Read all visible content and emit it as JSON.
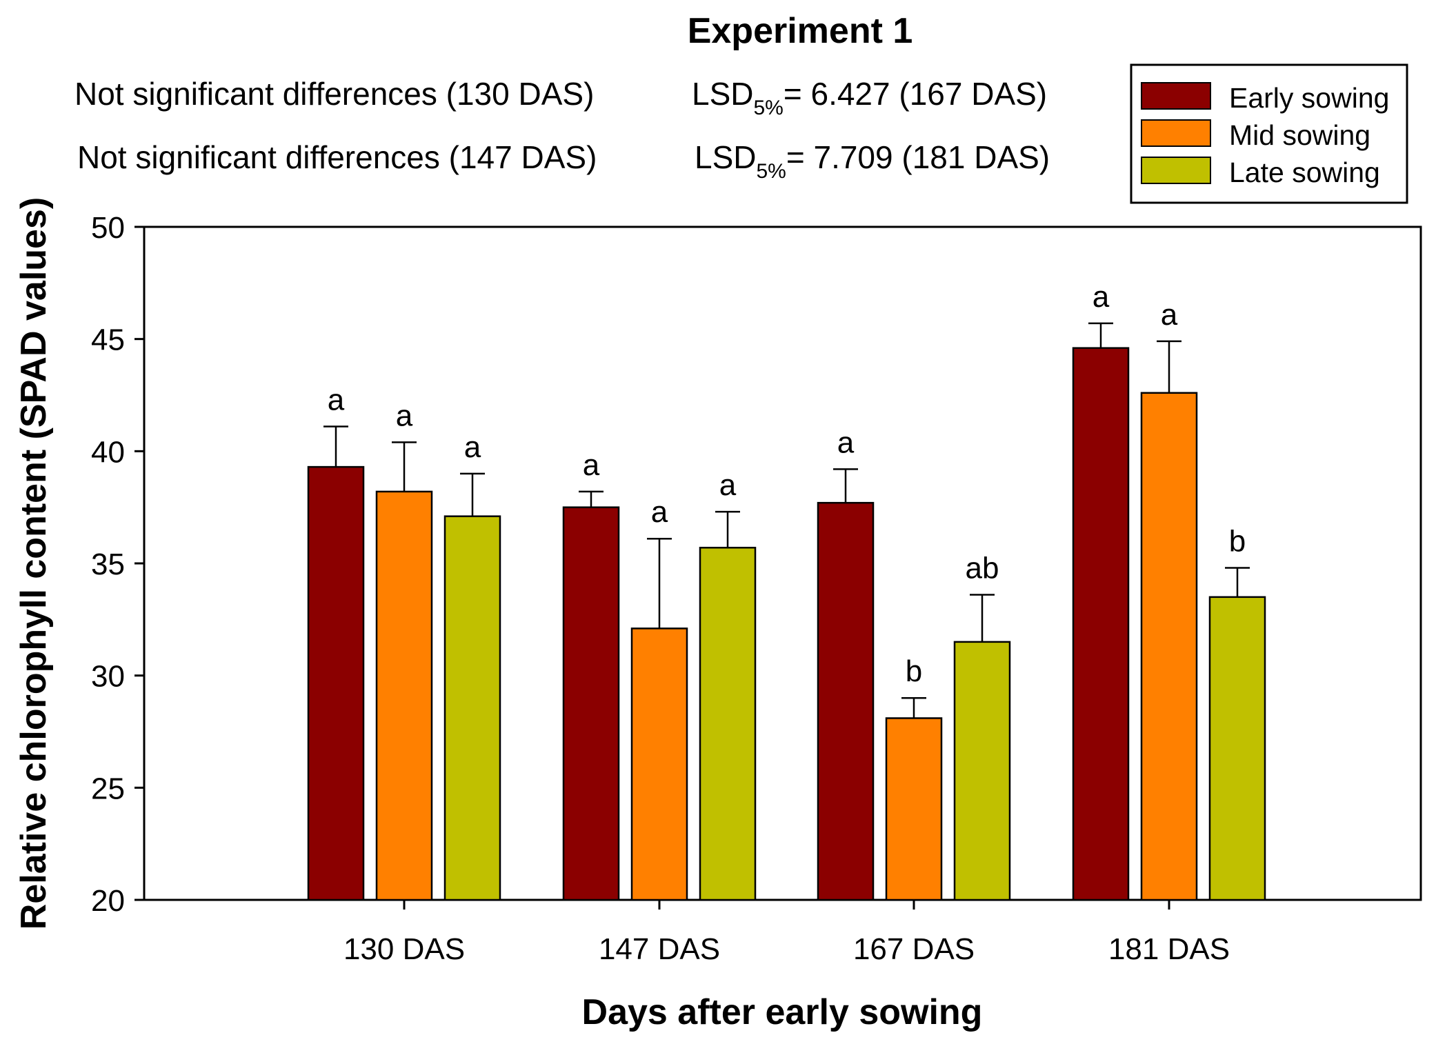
{
  "chart_data": {
    "type": "bar",
    "title": "Experiment 1",
    "xlabel": "Days after early sowing",
    "ylabel": "Relative chlorophyll content (SPAD values)",
    "ylim": [
      20,
      50
    ],
    "yticks": [
      20,
      25,
      30,
      35,
      40,
      45,
      50
    ],
    "ytick_labels": [
      "20",
      "25",
      "30",
      "35",
      "40",
      "45",
      "50"
    ],
    "categories": [
      "130 DAS",
      "147 DAS",
      "167 DAS",
      "181 DAS"
    ],
    "series": [
      {
        "name": "Early sowing",
        "color": "#8b0000",
        "values": [
          39.3,
          37.5,
          37.7,
          44.6
        ],
        "errors": [
          1.8,
          0.7,
          1.5,
          1.1
        ],
        "letters": [
          "a",
          "a",
          "a",
          "a"
        ]
      },
      {
        "name": "Mid sowing",
        "color": "#ff8000",
        "values": [
          38.2,
          32.1,
          28.1,
          42.6
        ],
        "errors": [
          2.2,
          4.0,
          0.9,
          2.3
        ],
        "letters": [
          "a",
          "a",
          "b",
          "a"
        ]
      },
      {
        "name": "Late sowing",
        "color": "#c0c000",
        "values": [
          37.1,
          35.7,
          31.5,
          33.5
        ],
        "errors": [
          1.9,
          1.6,
          2.1,
          1.3
        ],
        "letters": [
          "a",
          "a",
          "ab",
          "b"
        ]
      }
    ],
    "legend_position": "top-right",
    "annotations": [
      {
        "left": "Not significant differences (130 DAS)",
        "lsd_prefix": "LSD",
        "lsd_sub": "5%",
        "lsd_value": "= 6.427 (167 DAS)"
      },
      {
        "left": "Not significant differences (147 DAS)",
        "lsd_prefix": "LSD",
        "lsd_sub": "5%",
        "lsd_value": "= 7.709 (181 DAS)"
      }
    ]
  }
}
